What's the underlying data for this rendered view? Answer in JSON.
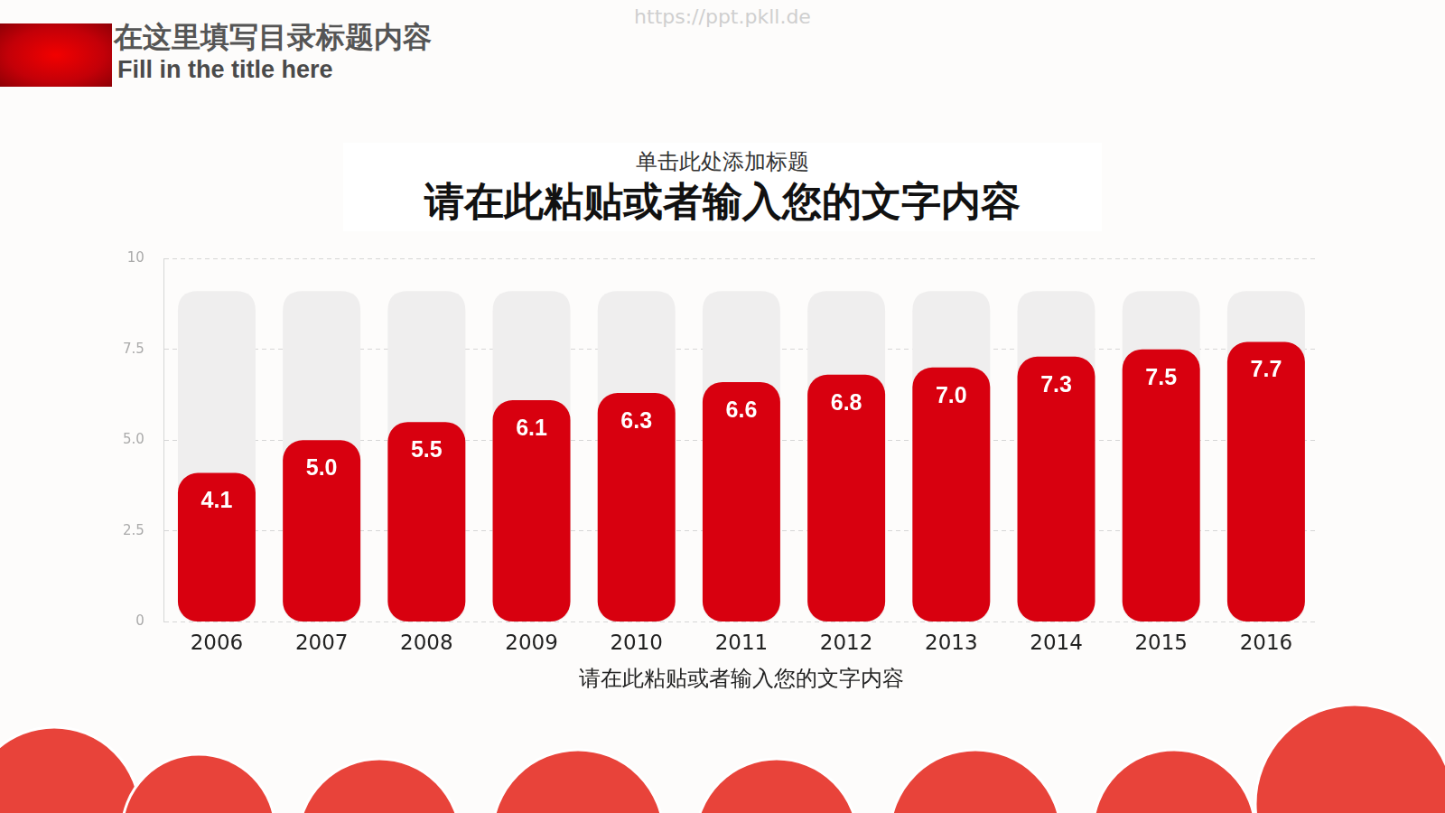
{
  "header": {
    "title": "在这里填写目录标题内容",
    "subtitle": "Fill in the title here"
  },
  "watermark": "https://ppt.pkll.de",
  "chart_data": {
    "type": "bar",
    "subtitle": "单击此处添加标题",
    "title": "请在此粘贴或者输入您的文字内容",
    "x_label": "请在此粘贴或者输入您的文字内容",
    "categories": [
      "2006",
      "2007",
      "2008",
      "2009",
      "2010",
      "2011",
      "2012",
      "2013",
      "2014",
      "2015",
      "2016"
    ],
    "values": [
      4.1,
      5.0,
      5.5,
      6.1,
      6.3,
      6.6,
      6.8,
      7.0,
      7.3,
      7.5,
      7.7
    ],
    "value_labels": [
      "4.1",
      "5.0",
      "5.5",
      "6.1",
      "6.3",
      "6.6",
      "6.8",
      "7.0",
      "7.3",
      "7.5",
      "7.7"
    ],
    "color": "#d8000f",
    "ylim": [
      0,
      10
    ],
    "yticks": [
      0,
      2.5,
      {
        "value": 5,
        "label": "5.0"
      },
      7.5,
      10
    ],
    "grid": true,
    "data_labels": true
  }
}
